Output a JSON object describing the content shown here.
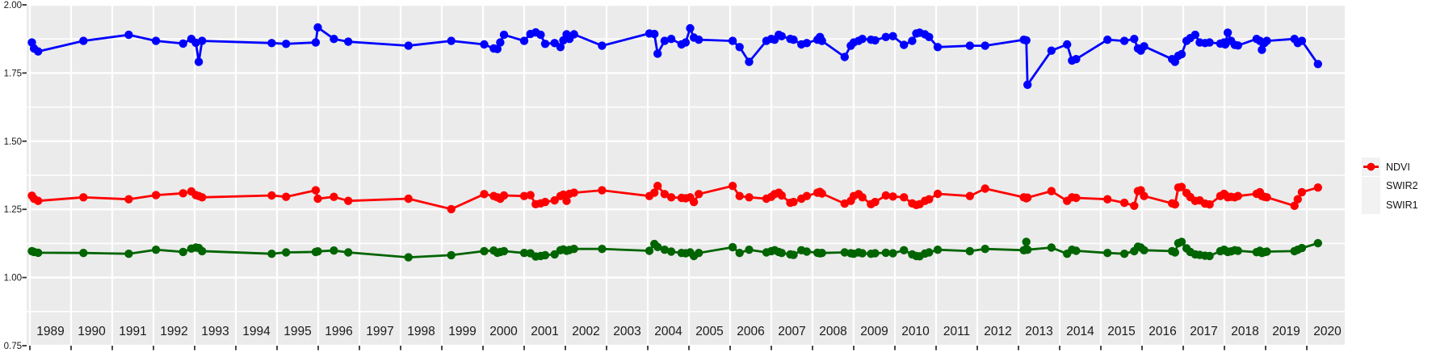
{
  "figure": {
    "background": "#ffffff",
    "panel_background": "#EBEBEB",
    "grid_color": "#FFFFFF",
    "tick_color": "#333333",
    "axis_text_color": "#1a1a1a"
  },
  "legend": {
    "position": "right",
    "key_background": "#F2F2F2",
    "entries": [
      {
        "label": "NDVI",
        "color": "#0000FF"
      },
      {
        "label": "SWIR2",
        "color": "#006400"
      },
      {
        "label": "SWIR1",
        "color": "#FF0000"
      }
    ]
  },
  "chart_data": {
    "type": "line",
    "title": "",
    "xlabel": "",
    "ylabel": "",
    "x_range": [
      1988.92,
      2020.92
    ],
    "y_range": [
      0.75,
      2.0
    ],
    "grid": "horizontal major+minor, vertical major per year",
    "legend_position": "right",
    "x_major_ticks": [
      1989,
      1990,
      1991,
      1992,
      1993,
      1994,
      1995,
      1996,
      1997,
      1998,
      1999,
      2000,
      2001,
      2002,
      2003,
      2004,
      2005,
      2006,
      2007,
      2008,
      2009,
      2010,
      2011,
      2012,
      2013,
      2014,
      2015,
      2016,
      2017,
      2018,
      2019,
      2020
    ],
    "x_tick_labels": [
      "1989",
      "1990",
      "1991",
      "1992",
      "1993",
      "1994",
      "1995",
      "1996",
      "1997",
      "1998",
      "1999",
      "2000",
      "2001",
      "2002",
      "2003",
      "2004",
      "2005",
      "2006",
      "2007",
      "2008",
      "2009",
      "2010",
      "2011",
      "2012",
      "2013",
      "2014",
      "2015",
      "2016",
      "2017",
      "2018",
      "2019",
      "2020"
    ],
    "y_major_ticks": [
      0.75,
      1.0,
      1.25,
      1.5,
      1.75,
      2.0
    ],
    "y_tick_labels": [
      "0.75",
      "1.00",
      "1.25",
      "1.50",
      "1.75",
      "2.00"
    ],
    "y_minor_ticks": [
      0.875,
      1.125,
      1.375,
      1.625,
      1.875
    ],
    "dates": [
      1989.05,
      1989.1,
      1989.2,
      1990.3,
      1991.4,
      1992.06,
      1992.72,
      1992.92,
      1993.03,
      1993.1,
      1993.18,
      1994.87,
      1995.22,
      1995.94,
      1995.99,
      1996.38,
      1996.73,
      1998.19,
      1999.23,
      2000.03,
      2000.26,
      2000.35,
      2000.42,
      2000.51,
      2001.0,
      2001.15,
      2001.28,
      2001.4,
      2001.51,
      2001.74,
      2001.88,
      2001.95,
      2002.03,
      2002.1,
      2002.21,
      2002.89,
      2004.04,
      2004.16,
      2004.24,
      2004.41,
      2004.57,
      2004.82,
      2004.92,
      2005.03,
      2005.12,
      2005.24,
      2006.06,
      2006.23,
      2006.46,
      2006.88,
      2007.0,
      2007.08,
      2007.18,
      2007.25,
      2007.46,
      2007.54,
      2007.73,
      2007.86,
      2008.12,
      2008.18,
      2008.23,
      2008.78,
      2008.93,
      2009.0,
      2009.12,
      2009.21,
      2009.42,
      2009.52,
      2009.78,
      2009.95,
      2010.22,
      2010.42,
      2010.52,
      2010.6,
      2010.73,
      2010.83,
      2011.04,
      2011.82,
      2012.19,
      2013.13,
      2013.19,
      2013.22,
      2013.8,
      2014.18,
      2014.3,
      2014.4,
      2015.16,
      2015.57,
      2015.81,
      2015.9,
      2015.97,
      2016.05,
      2016.73,
      2016.8,
      2016.88,
      2016.96,
      2017.08,
      2017.17,
      2017.29,
      2017.4,
      2017.53,
      2017.64,
      2017.9,
      2017.99,
      2018.02,
      2018.08,
      2018.16,
      2018.25,
      2018.33,
      2018.78,
      2018.86,
      2018.91,
      2018.97,
      2019.03,
      2019.7,
      2019.78,
      2019.88,
      2020.27
    ],
    "series": [
      {
        "name": "NDVI",
        "color": "#0000FF",
        "values": [
          1.862,
          1.84,
          1.829,
          1.868,
          1.89,
          1.868,
          1.858,
          1.875,
          1.861,
          1.791,
          1.868,
          1.86,
          1.857,
          1.862,
          1.917,
          1.875,
          1.865,
          1.85,
          1.868,
          1.855,
          1.84,
          1.838,
          1.862,
          1.89,
          1.868,
          1.893,
          1.899,
          1.89,
          1.857,
          1.86,
          1.845,
          1.87,
          1.892,
          1.875,
          1.892,
          1.85,
          1.895,
          1.893,
          1.821,
          1.868,
          1.875,
          1.855,
          1.862,
          1.914,
          1.88,
          1.872,
          1.868,
          1.845,
          1.791,
          1.868,
          1.875,
          1.872,
          1.89,
          1.885,
          1.875,
          1.872,
          1.855,
          1.86,
          1.872,
          1.882,
          1.868,
          1.809,
          1.85,
          1.862,
          1.868,
          1.875,
          1.872,
          1.87,
          1.882,
          1.885,
          1.853,
          1.868,
          1.895,
          1.898,
          1.892,
          1.882,
          1.845,
          1.85,
          1.85,
          1.872,
          1.87,
          1.707,
          1.832,
          1.855,
          1.796,
          1.801,
          1.872,
          1.868,
          1.875,
          1.84,
          1.832,
          1.848,
          1.801,
          1.791,
          1.813,
          1.819,
          1.868,
          1.878,
          1.89,
          1.862,
          1.86,
          1.862,
          1.858,
          1.862,
          1.855,
          1.898,
          1.868,
          1.853,
          1.851,
          1.875,
          1.868,
          1.835,
          1.86,
          1.868,
          1.875,
          1.86,
          1.868,
          1.783
        ]
      },
      {
        "name": "SWIR2",
        "color": "#006400",
        "values": [
          1.097,
          1.094,
          1.091,
          1.09,
          1.087,
          1.102,
          1.094,
          1.106,
          1.11,
          1.108,
          1.097,
          1.087,
          1.092,
          1.094,
          1.096,
          1.099,
          1.092,
          1.074,
          1.082,
          1.097,
          1.099,
          1.091,
          1.094,
          1.097,
          1.09,
          1.089,
          1.077,
          1.079,
          1.082,
          1.085,
          1.1,
          1.103,
          1.098,
          1.101,
          1.105,
          1.105,
          1.098,
          1.123,
          1.112,
          1.102,
          1.095,
          1.09,
          1.089,
          1.092,
          1.079,
          1.09,
          1.111,
          1.09,
          1.102,
          1.092,
          1.097,
          1.1,
          1.094,
          1.09,
          1.085,
          1.083,
          1.1,
          1.095,
          1.091,
          1.089,
          1.09,
          1.092,
          1.089,
          1.087,
          1.092,
          1.089,
          1.087,
          1.089,
          1.091,
          1.089,
          1.1,
          1.085,
          1.079,
          1.078,
          1.088,
          1.092,
          1.102,
          1.097,
          1.105,
          1.1,
          1.131,
          1.102,
          1.11,
          1.087,
          1.102,
          1.098,
          1.09,
          1.087,
          1.097,
          1.113,
          1.11,
          1.1,
          1.097,
          1.092,
          1.126,
          1.131,
          1.107,
          1.094,
          1.085,
          1.083,
          1.08,
          1.079,
          1.097,
          1.102,
          1.099,
          1.094,
          1.096,
          1.1,
          1.098,
          1.093,
          1.098,
          1.09,
          1.093,
          1.095,
          1.097,
          1.102,
          1.108,
          1.126
        ]
      },
      {
        "name": "SWIR1",
        "color": "#FF0000",
        "values": [
          1.3,
          1.289,
          1.281,
          1.294,
          1.287,
          1.302,
          1.309,
          1.316,
          1.302,
          1.299,
          1.294,
          1.301,
          1.296,
          1.32,
          1.289,
          1.296,
          1.281,
          1.289,
          1.251,
          1.306,
          1.299,
          1.294,
          1.289,
          1.301,
          1.299,
          1.302,
          1.269,
          1.272,
          1.277,
          1.283,
          1.299,
          1.304,
          1.281,
          1.307,
          1.311,
          1.32,
          1.299,
          1.311,
          1.336,
          1.306,
          1.294,
          1.292,
          1.291,
          1.294,
          1.277,
          1.306,
          1.336,
          1.299,
          1.294,
          1.289,
          1.296,
          1.306,
          1.311,
          1.301,
          1.274,
          1.277,
          1.289,
          1.299,
          1.311,
          1.314,
          1.308,
          1.271,
          1.281,
          1.299,
          1.306,
          1.294,
          1.269,
          1.277,
          1.301,
          1.297,
          1.294,
          1.272,
          1.266,
          1.269,
          1.281,
          1.287,
          1.307,
          1.299,
          1.326,
          1.294,
          1.291,
          1.293,
          1.317,
          1.281,
          1.294,
          1.292,
          1.287,
          1.274,
          1.263,
          1.317,
          1.32,
          1.299,
          1.272,
          1.268,
          1.33,
          1.332,
          1.31,
          1.295,
          1.281,
          1.283,
          1.271,
          1.268,
          1.299,
          1.307,
          1.303,
          1.294,
          1.296,
          1.294,
          1.299,
          1.307,
          1.313,
          1.299,
          1.296,
          1.294,
          1.263,
          1.287,
          1.313,
          1.33
        ]
      }
    ]
  }
}
